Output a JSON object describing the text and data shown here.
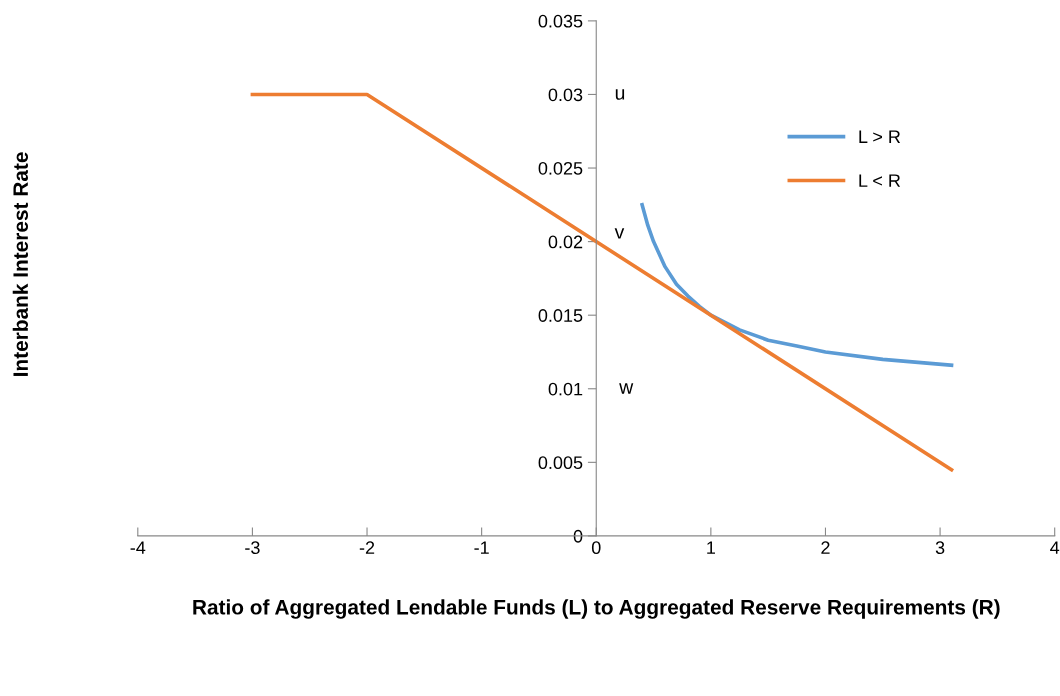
{
  "chart_data": {
    "type": "line",
    "xlabel": "Ratio of Aggregated Lendable Funds (L) to Aggregated Reserve Requirements (R)",
    "ylabel": "Interbank Interest Rate",
    "series": [
      {
        "name": "L > R",
        "color": "#5b9bd5",
        "x": [
          0.4,
          0.45,
          0.5,
          0.6,
          0.7,
          0.8,
          0.9,
          1.0,
          1.25,
          1.5,
          1.75,
          2.0,
          2.5,
          3.1
        ],
        "values": [
          0.0225,
          0.0211,
          0.02,
          0.0183,
          0.0171,
          0.0163,
          0.0156,
          0.015,
          0.014,
          0.0133,
          0.0129,
          0.0125,
          0.012,
          0.0116
        ]
      },
      {
        "name": "L < R",
        "color": "#ed7d31",
        "x": [
          -3,
          -2,
          3.1
        ],
        "values": [
          0.03,
          0.03,
          0.0045
        ]
      }
    ],
    "xlim": [
      -4,
      4
    ],
    "xticks": [
      -4,
      -3,
      -2,
      -1,
      0,
      1,
      2,
      3,
      4
    ],
    "ylim": [
      0,
      0.035
    ],
    "yticks": [
      0,
      0.005,
      0.01,
      0.015,
      0.02,
      0.025,
      0.03,
      0.035
    ],
    "annotations": [
      "u",
      "v",
      "w"
    ],
    "legend": "upper right",
    "grid": false,
    "marker": "none",
    "line_style": "solid"
  }
}
